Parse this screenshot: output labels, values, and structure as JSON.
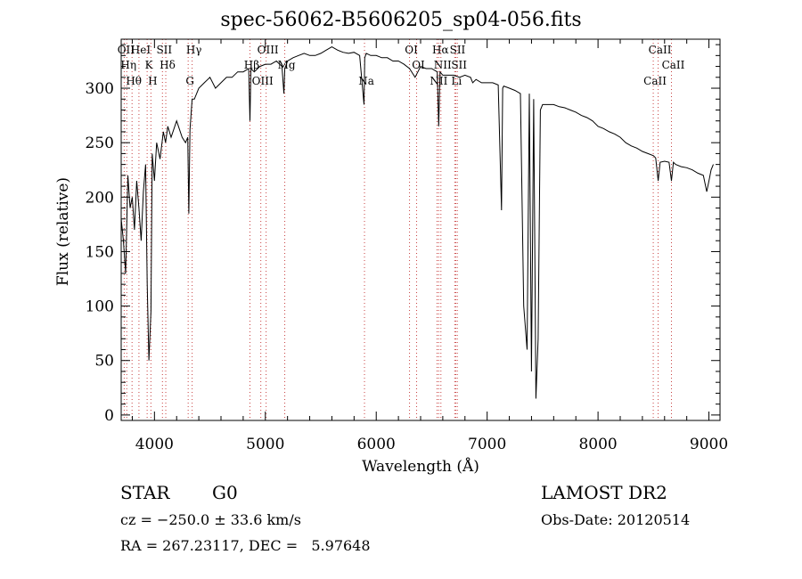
{
  "chart_data": {
    "type": "line",
    "title": "spec-56062-B5606205_sp04-056.fits",
    "xlabel": "Wavelength (Å)",
    "ylabel": "Flux (relative)",
    "xlim": [
      3700,
      9100
    ],
    "ylim": [
      -5,
      345
    ],
    "x_ticks": [
      4000,
      5000,
      6000,
      7000,
      8000,
      9000
    ],
    "y_ticks": [
      0,
      50,
      100,
      150,
      200,
      250,
      300
    ],
    "grid": false,
    "series": [
      {
        "x": [
          3700,
          3720,
          3740,
          3760,
          3780,
          3800,
          3820,
          3840,
          3860,
          3880,
          3900,
          3920,
          3935,
          3950,
          3968,
          3980,
          4000,
          4020,
          4050,
          4080,
          4100,
          4120,
          4150,
          4200,
          4250,
          4280,
          4300,
          4310,
          4320,
          4340,
          4360,
          4400,
          4450,
          4500,
          4550,
          4600,
          4650,
          4700,
          4750,
          4800,
          4850,
          4861,
          4870,
          4900,
          4950,
          5000,
          5050,
          5100,
          5150,
          5167,
          5175,
          5200,
          5250,
          5300,
          5350,
          5400,
          5450,
          5500,
          5550,
          5600,
          5650,
          5700,
          5750,
          5800,
          5850,
          5890,
          5896,
          5910,
          5950,
          6000,
          6050,
          6100,
          6150,
          6200,
          6250,
          6300,
          6350,
          6400,
          6450,
          6500,
          6550,
          6563,
          6575,
          6600,
          6650,
          6700,
          6750,
          6800,
          6850,
          6870,
          6900,
          6950,
          7000,
          7050,
          7100,
          7130,
          7140,
          7150,
          7200,
          7250,
          7300,
          7330,
          7360,
          7380,
          7400,
          7420,
          7440,
          7460,
          7480,
          7500,
          7550,
          7600,
          7650,
          7700,
          7750,
          7800,
          7850,
          7900,
          7950,
          8000,
          8050,
          8100,
          8150,
          8200,
          8250,
          8300,
          8350,
          8400,
          8450,
          8500,
          8520,
          8542,
          8560,
          8600,
          8640,
          8662,
          8680,
          8700,
          8750,
          8800,
          8850,
          8900,
          8950,
          8980,
          9000,
          9020,
          9040
        ],
        "y": [
          180,
          160,
          130,
          220,
          190,
          200,
          170,
          215,
          190,
          160,
          205,
          230,
          120,
          50,
          95,
          240,
          215,
          250,
          235,
          260,
          250,
          265,
          255,
          270,
          255,
          250,
          255,
          185,
          262,
          290,
          290,
          300,
          305,
          310,
          300,
          305,
          310,
          310,
          315,
          315,
          318,
          270,
          318,
          315,
          320,
          322,
          322,
          325,
          320,
          295,
          318,
          325,
          328,
          330,
          332,
          330,
          330,
          332,
          335,
          338,
          335,
          333,
          332,
          333,
          330,
          285,
          328,
          332,
          330,
          330,
          328,
          328,
          325,
          325,
          322,
          318,
          310,
          320,
          318,
          318,
          315,
          265,
          315,
          312,
          312,
          312,
          310,
          312,
          310,
          305,
          308,
          305,
          305,
          305,
          303,
          188,
          300,
          302,
          300,
          298,
          295,
          100,
          60,
          295,
          40,
          290,
          15,
          70,
          280,
          285,
          285,
          285,
          283,
          282,
          280,
          278,
          275,
          273,
          270,
          265,
          263,
          260,
          258,
          255,
          250,
          247,
          245,
          242,
          240,
          238,
          236,
          215,
          232,
          233,
          232,
          215,
          232,
          230,
          228,
          227,
          225,
          222,
          220,
          205,
          215,
          225,
          230
        ]
      }
    ],
    "line_labels": [
      {
        "wave": 3727,
        "label": "OII"
      },
      {
        "wave": 3750,
        "label": "Hη"
      },
      {
        "wave": 3798,
        "label": "Hθ"
      },
      {
        "wave": 3860,
        "label": "HeI"
      },
      {
        "wave": 3934,
        "label": "K"
      },
      {
        "wave": 3968,
        "label": "H"
      },
      {
        "wave": 4072,
        "label": "SII"
      },
      {
        "wave": 4102,
        "label": "Hδ"
      },
      {
        "wave": 4304,
        "label": "G"
      },
      {
        "wave": 4340,
        "label": "Hγ"
      },
      {
        "wave": 4861,
        "label": "Hβ"
      },
      {
        "wave": 4959,
        "label": "OIII"
      },
      {
        "wave": 5007,
        "label": "OIII"
      },
      {
        "wave": 5175,
        "label": "Mg"
      },
      {
        "wave": 5894,
        "label": "Na"
      },
      {
        "wave": 6300,
        "label": "OI"
      },
      {
        "wave": 6364,
        "label": "OI"
      },
      {
        "wave": 6548,
        "label": "NII"
      },
      {
        "wave": 6563,
        "label": "Hα"
      },
      {
        "wave": 6583,
        "label": "NII"
      },
      {
        "wave": 6708,
        "label": "Li"
      },
      {
        "wave": 6717,
        "label": "SII"
      },
      {
        "wave": 6731,
        "label": "SII"
      },
      {
        "wave": 8498,
        "label": "CaII"
      },
      {
        "wave": 8542,
        "label": "CaII"
      },
      {
        "wave": 8662,
        "label": "CaII"
      }
    ]
  },
  "info": {
    "object_class": "STAR",
    "subclass": "G0",
    "survey": "LAMOST DR2",
    "cz": "cz = −250.0 ± 33.6 km/s",
    "obs_date": "Obs-Date: 20120514",
    "coords": "RA = 267.23117, DEC =   5.97648"
  }
}
